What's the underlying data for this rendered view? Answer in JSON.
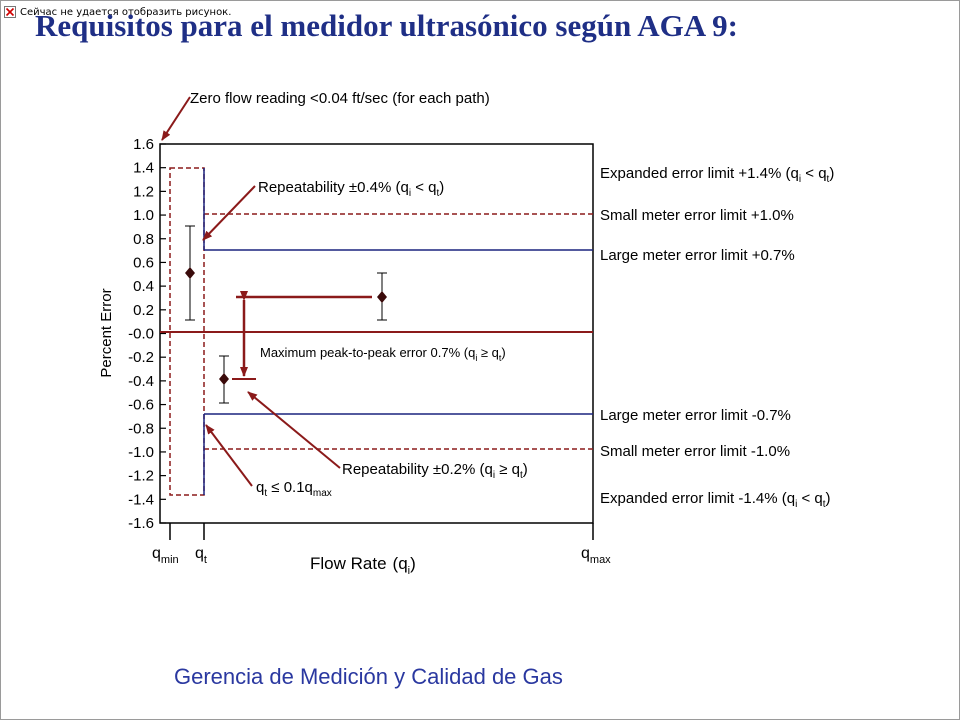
{
  "notice": {
    "text": "Сейчас не удается отобразить рисунок.",
    "icon": "broken-image-icon"
  },
  "title": "Requisitos para el medidor ultrasónico según AGA 9:",
  "footer": "Gerencia de Medición y Calidad de Gas",
  "colors": {
    "title": "#1f2f86",
    "footer": "#2a38a0",
    "dark_red": "#8b1a1a",
    "limit_blue": "#1a237e"
  },
  "diagram": {
    "y_axis_label": "Percent Error",
    "x_axis_label": {
      "text": "Flow Rate",
      "open": "(q",
      "sub": "i",
      "close": ")"
    },
    "y_ticks": [
      "1.6",
      "1.4",
      "1.2",
      "1.0",
      "0.8",
      "0.6",
      "0.4",
      "0.2",
      "-0.0",
      "-0.2",
      "-0.4",
      "-0.6",
      "-0.8",
      "-1.0",
      "-1.2",
      "-1.4",
      "-1.6"
    ],
    "x_markers": {
      "qmin": {
        "q": "q",
        "sub": "min"
      },
      "qt": {
        "q": "q",
        "sub": "t"
      },
      "qmax": {
        "q": "q",
        "sub": "max"
      }
    },
    "zero_flow": "Zero flow reading <0.04 ft/sec (for each path)",
    "repeat_low": {
      "pre": "Repeatability ±0.4% (q",
      "s1": "i",
      "mid": " < q",
      "s2": "t",
      "post": ")"
    },
    "peak": {
      "pre": "Maximum peak-to-peak error 0.7% (q",
      "s1": "i",
      "mid": " ≥ q",
      "s2": "t",
      "post": ")"
    },
    "repeat_high": {
      "pre": "Repeatability ±0.2% (q",
      "s1": "i",
      "mid": " ≥ q",
      "s2": "t",
      "post": ")"
    },
    "qt_cond": {
      "a": "q",
      "s1": "t",
      "b": " ≤ 0.1q",
      "s2": "max"
    },
    "right_labels": {
      "exp_pos": {
        "pre": "Expanded error limit +1.4% (q",
        "s1": "i",
        "mid": " < q",
        "s2": "t",
        "post": ")"
      },
      "small_pos": "Small meter error limit +1.0%",
      "large_pos": "Large meter error limit +0.7%",
      "large_neg": "Large meter error limit -0.7%",
      "small_neg": "Small meter error limit -1.0%",
      "exp_neg": {
        "pre": "Expanded error limit -1.4% (q",
        "s1": "i",
        "mid": " < q",
        "s2": "t",
        "post": ")"
      }
    }
  }
}
